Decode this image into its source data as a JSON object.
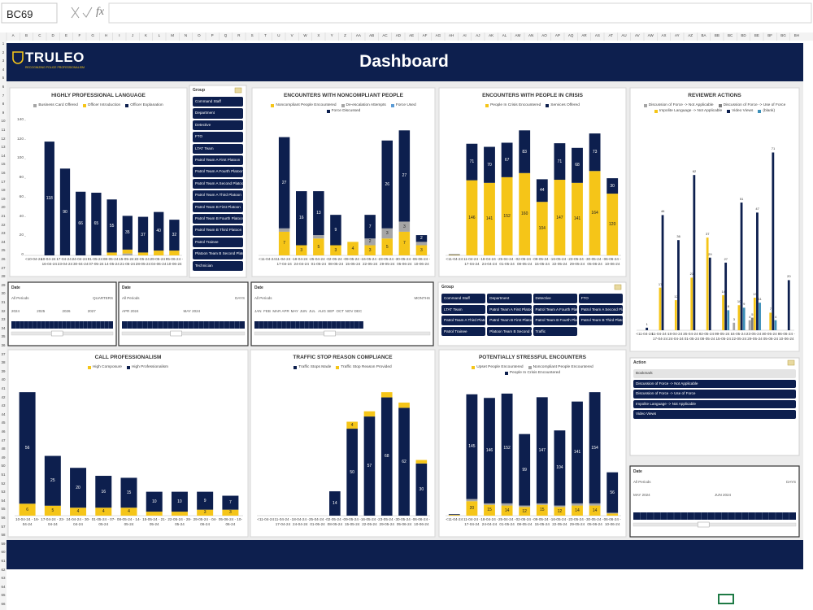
{
  "formula_bar": {
    "name_box": "BC69",
    "function_label": "fx"
  },
  "sheet": {
    "columns": [
      "A",
      "B",
      "C",
      "D",
      "E",
      "F",
      "G",
      "H",
      "I",
      "J",
      "K",
      "L",
      "M",
      "N",
      "O",
      "P",
      "Q",
      "R",
      "S",
      "T",
      "U",
      "V",
      "W",
      "X",
      "Y",
      "Z",
      "AA",
      "AB",
      "AC",
      "AD",
      "AE",
      "AF",
      "AG",
      "AH",
      "AI",
      "AJ",
      "AK",
      "AL",
      "AM",
      "AN",
      "AO",
      "AP",
      "AQ",
      "AR",
      "AS",
      "AT",
      "AU",
      "AV",
      "AW",
      "AX",
      "AY",
      "AZ",
      "BA",
      "BB",
      "BC",
      "BD",
      "BE",
      "BF",
      "BG",
      "BH"
    ],
    "rows": [
      1,
      2,
      3,
      4,
      5,
      6,
      7,
      8,
      9,
      10,
      11,
      12,
      13,
      14,
      15,
      16,
      17,
      18,
      19,
      20,
      21,
      22,
      23,
      24,
      25,
      26,
      27,
      28,
      29,
      30,
      31,
      32,
      33,
      34,
      35,
      36,
      37,
      38,
      39,
      40,
      41,
      42,
      43,
      44,
      45,
      46,
      47,
      48,
      49,
      50,
      51,
      52,
      53,
      54,
      55,
      56,
      57,
      58,
      59,
      60,
      61,
      62,
      63,
      64,
      65,
      66
    ]
  },
  "header": {
    "logo": "TRULEO",
    "tagline": "RECOGNIZING POLICE PROFESSIONALISM",
    "title": "Dashboard"
  },
  "chart_data": [
    {
      "type": "stacked_bar",
      "title": "HIGHLY PROFESSIONAL LANGUAGE",
      "categories": [
        "<10-04-24",
        "10-04-24 - 16-04-24",
        "17-04-24 - 23-04-24",
        "24-04-24 - 30-04-24",
        "01-05-24 - 07-05-24",
        "08-05-24 - 14-05-24",
        "15-05-24 - 21-05-24",
        "22-05-24 - 28-05-24",
        "29-05-24 - 04-06-24",
        "05-06-24 - 10-06-24"
      ],
      "series": [
        {
          "name": "Business Card Offered",
          "color": "#a5a5a5",
          "values": [
            0,
            0,
            0,
            0,
            0,
            0,
            2,
            0,
            0,
            0
          ]
        },
        {
          "name": "Officer Introduction",
          "color": "#f5c518",
          "values": [
            0,
            0,
            0,
            0,
            0,
            3,
            4,
            3,
            5,
            5
          ]
        },
        {
          "name": "Officer Explanation",
          "color": "#0d1f4e",
          "values": [
            0,
            118,
            90,
            66,
            65,
            55,
            35,
            37,
            40,
            32
          ]
        }
      ],
      "ylim": [
        0,
        140
      ],
      "yticks": [
        0,
        20,
        40,
        60,
        80,
        100,
        120,
        140
      ]
    },
    {
      "type": "stacked_bar",
      "title": "ENCOUNTERS WITH NONCOMPLIANT PEOPLE",
      "categories": [
        "<11-04-24",
        "11-04-24 - 17-04-24",
        "18-04-24 - 24-04-24",
        "25-04-24 - 01-05-24",
        "02-05-24 - 08-05-24",
        "09-05-24 - 15-05-24",
        "16-05-24 - 22-05-24",
        "23-05-24 - 29-05-24",
        "30-05-24 - 05-06-24",
        "06-06-24 - 10-06-24"
      ],
      "series": [
        {
          "name": "Noncompliant People Encountered",
          "color": "#f5c518",
          "values": [
            0,
            7,
            3,
            5,
            3,
            4,
            3,
            5,
            7,
            3
          ]
        },
        {
          "name": "De-escalation Attempts",
          "color": "#a5a5a5",
          "values": [
            0,
            1,
            0,
            1,
            0,
            0,
            2,
            3,
            3,
            1
          ]
        },
        {
          "name": "Force Used",
          "color": "#5b9bd5",
          "values": [
            0,
            0,
            0,
            0,
            0,
            0,
            0,
            0,
            0,
            0
          ]
        },
        {
          "name": "Force Discussed",
          "color": "#0d1f4e",
          "values": [
            0,
            27,
            16,
            13,
            9,
            0,
            7,
            26,
            27,
            2
          ]
        }
      ]
    },
    {
      "type": "stacked_bar",
      "title": "ENCOUNTERS WITH PEOPLE IN CRISIS",
      "categories": [
        "<11-04-24",
        "11-04-24 - 17-04-24",
        "18-04-24 - 24-04-24",
        "25-04-24 - 01-05-24",
        "02-05-24 - 08-05-24",
        "09-05-24 - 15-05-24",
        "16-05-24 - 22-05-24",
        "23-05-24 - 29-05-24",
        "30-05-24 - 05-06-24",
        "06-06-24 - 10-06-24"
      ],
      "series": [
        {
          "name": "People In Crisis Encountered",
          "color": "#f5c518",
          "values": [
            1,
            146,
            141,
            152,
            160,
            104,
            147,
            141,
            164,
            120
          ]
        },
        {
          "name": "Services Offered",
          "color": "#0d1f4e",
          "values": [
            1,
            71,
            70,
            67,
            83,
            44,
            71,
            68,
            73,
            30
          ]
        }
      ]
    },
    {
      "type": "bar",
      "title": "REVIEWER ACTIONS",
      "categories": [
        "<11-04-24",
        "11-04-24 - 17-04-24",
        "18-04-24 - 24-04-24",
        "25-04-24 - 01-05-24",
        "02-05-24 - 08-05-24",
        "09-05-24 - 15-05-24",
        "16-05-24 - 22-05-24",
        "23-05-24 - 29-05-24",
        "30-05-24 - 05-06-24",
        "06-06-24 - 10-06-24"
      ],
      "series": [
        {
          "name": "Discussion of Force -> Not Applicable",
          "color": "#a5a5a5",
          "values": [
            0,
            0,
            0,
            0,
            0,
            0,
            3,
            4,
            0,
            0
          ]
        },
        {
          "name": "Discussion of Force -> Use of Force",
          "color": "#7f7f7f",
          "values": [
            0,
            0,
            0,
            0,
            0,
            0,
            0,
            5,
            0,
            0
          ]
        },
        {
          "name": "Impolite Language -> Not Applicable",
          "color": "#f5c518",
          "values": [
            0,
            17,
            12,
            21,
            37,
            14,
            10,
            13,
            7,
            0
          ]
        },
        {
          "name": "Video Views",
          "color": "#0d1f4e",
          "values": [
            1,
            46,
            36,
            62,
            29,
            27,
            51,
            47,
            71,
            20
          ]
        },
        {
          "name": "(blank)",
          "color": "#3d8fb8",
          "values": [
            0,
            0,
            0,
            0,
            0,
            8,
            9,
            11,
            4,
            0
          ]
        }
      ]
    },
    {
      "type": "stacked_bar",
      "title": "CALL PROFESSIONALISM",
      "categories": [
        "10-04-24 - 16-04-24",
        "17-04-24 - 23-04-24",
        "24-04-24 - 30-04-24",
        "01-05-24 - 07-05-24",
        "08-05-24 - 14-05-24",
        "15-05-24 - 21-05-24",
        "22-05-24 - 28-05-24",
        "29-05-24 - 04-06-24",
        "05-06-24 - 10-06-24"
      ],
      "series": [
        {
          "name": "High Composure",
          "color": "#f5c518",
          "values": [
            6,
            5,
            4,
            4,
            4,
            2,
            2,
            3,
            3
          ]
        },
        {
          "name": "High Professionalism",
          "color": "#0d1f4e",
          "values": [
            56,
            25,
            20,
            16,
            15,
            10,
            10,
            9,
            7
          ]
        }
      ]
    },
    {
      "type": "stacked_bar",
      "title": "TRAFFIC STOP REASON COMPLIANCE",
      "categories": [
        "<11-04-24",
        "11-04-24 - 17-04-24",
        "18-04-24 - 24-04-24",
        "25-04-24 - 01-05-24",
        "02-05-24 - 08-05-24",
        "09-05-24 - 15-05-24",
        "16-05-24 - 22-05-24",
        "23-05-24 - 29-05-24",
        "30-05-24 - 05-06-24",
        "06-06-24 - 10-06-24"
      ],
      "series": [
        {
          "name": "Traffic Stops Made",
          "color": "#0d1f4e",
          "values": [
            0,
            0,
            0,
            0,
            14,
            50,
            57,
            68,
            62,
            30
          ]
        },
        {
          "name": "Traffic Stop Reason Provided",
          "color": "#f5c518",
          "values": [
            0,
            0,
            0,
            0,
            0,
            4,
            3,
            3,
            3,
            2
          ]
        }
      ]
    },
    {
      "type": "stacked_bar",
      "title": "POTENTIALLY STRESSFUL ENCOUNTERS",
      "categories": [
        "<11-04-24",
        "11-04-24 - 17-04-24",
        "18-04-24 - 24-04-24",
        "25-04-24 - 01-05-24",
        "02-05-24 - 08-05-24",
        "09-05-24 - 15-05-24",
        "16-05-24 - 22-05-24",
        "23-05-24 - 29-05-24",
        "30-05-24 - 05-06-24",
        "06-06-24 - 10-06-24"
      ],
      "series": [
        {
          "name": "Upset People Encountered",
          "color": "#f5c518",
          "values": [
            1,
            20,
            15,
            14,
            12,
            15,
            12,
            14,
            14,
            3
          ]
        },
        {
          "name": "Noncompliant People Encountered",
          "color": "#a5a5a5",
          "values": [
            0,
            3,
            2,
            3,
            2,
            2,
            2,
            3,
            3,
            1
          ]
        },
        {
          "name": "People In Crisis Encountered",
          "color": "#0d1f4e",
          "values": [
            1,
            145,
            146,
            152,
            99,
            147,
            104,
            141,
            154,
            56
          ]
        }
      ]
    }
  ],
  "slicers": [
    {
      "header": "Group",
      "items": [
        "Command Staff",
        "Department",
        "Detective",
        "FTO",
        "LTAT Team",
        "Patrol Team A First Platoon",
        "Patrol Team A Fourth Platoon",
        "Patrol Team A Second Platoon",
        "Patrol Team A Third Platoon",
        "Patrol Team B First Platoon",
        "Patrol Team B Fourth Platoon",
        "Patrol Team B Third Platoon",
        "Patrol Trainee",
        "Platoon Team B Second Platoon",
        "Technician"
      ]
    },
    {
      "header": "Group",
      "items": [
        "Command Staff",
        "Department",
        "Detective",
        "FTO",
        "LTAT Team",
        "Patrol Team A First Platoon",
        "Patrol Team A Fourth Platoon",
        "Patrol Team A Second Platoon",
        "Patrol Team A Third Platoon",
        "Patrol Team B First Platoon",
        "Patrol Team B Fourth Platoon",
        "Patrol Team B Third Platoon",
        "Patrol Trainee",
        "Platoon Team B Second Pl...",
        "Traffic"
      ]
    },
    {
      "header": "Action",
      "items": [
        "Bookmark",
        "Discussion of Force -> Not Applicable",
        "Discussion of Force -> Use of Force",
        "Impolite Language -> Not Applicable",
        "Video Views"
      ]
    }
  ],
  "timelines": [
    {
      "header": "Date",
      "period": "All Periods",
      "unit": "QUARTERS",
      "levels": [
        "2024",
        "2025",
        "2026",
        "2027"
      ]
    },
    {
      "header": "Date",
      "period": "All Periods",
      "unit": "DAYS",
      "levels": [
        "APR 2024",
        "MAY 2024"
      ]
    },
    {
      "header": "Date",
      "period": "All Periods",
      "unit": "MONTHS",
      "levels": [
        "JAN",
        "FEB",
        "MAR",
        "APR",
        "MAY",
        "JUN",
        "JUL",
        "AUG",
        "SEP",
        "OCT",
        "NOV",
        "DEC"
      ]
    },
    {
      "header": "Date",
      "period": "All Periods",
      "unit": "DAYS",
      "levels": [
        "MAY 2024",
        "JUN 2024"
      ]
    }
  ]
}
